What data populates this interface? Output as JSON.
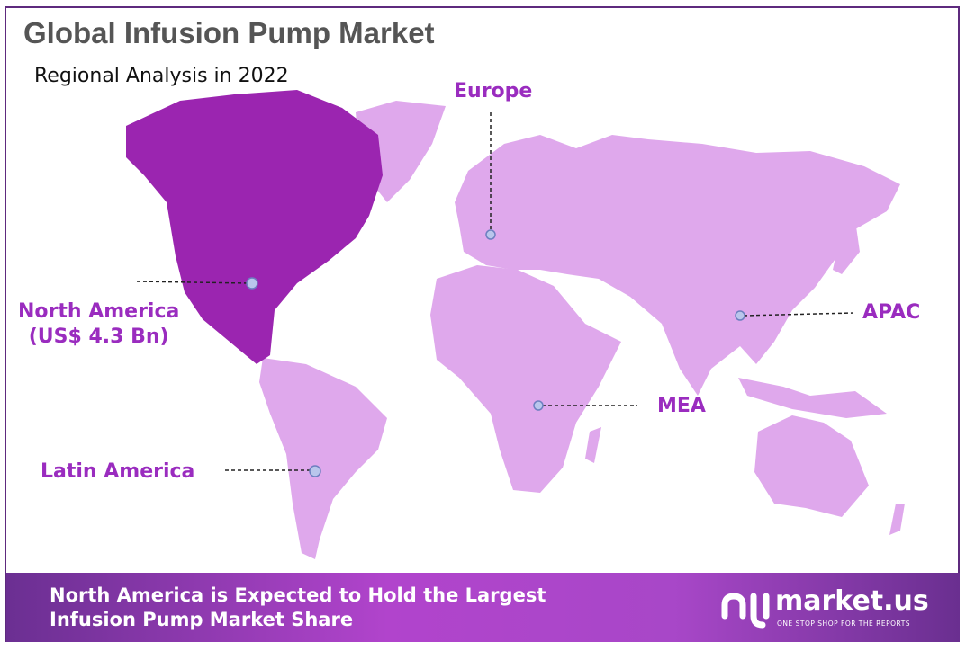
{
  "title": "Global Infusion Pump Market",
  "subtitle": "Regional Analysis in 2022",
  "colors": {
    "highlight": "#9b25b0",
    "region": "#dfa8ec",
    "label": "#9a2cbf",
    "footer": "#a847c8"
  },
  "regions": [
    {
      "name": "North America",
      "value": "(US$ 4.3 Bn)",
      "highlighted": true
    },
    {
      "name": "Europe"
    },
    {
      "name": "APAC"
    },
    {
      "name": "MEA"
    },
    {
      "name": "Latin America"
    }
  ],
  "footer": {
    "line1": "North America is Expected to Hold the Largest",
    "line2": "Infusion Pump Market Share"
  },
  "logo": {
    "name": "market.us",
    "tagline": "ONE STOP SHOP FOR THE REPORTS"
  }
}
